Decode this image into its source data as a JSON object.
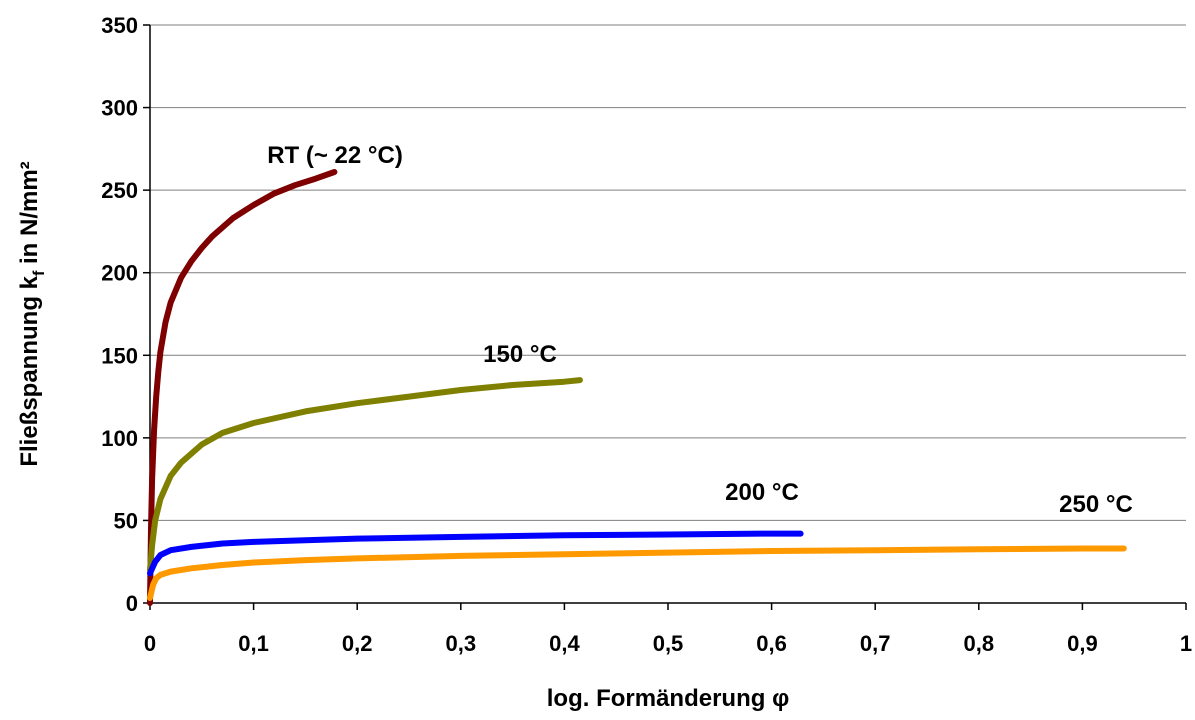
{
  "chart_data": {
    "type": "line",
    "title": "",
    "xlabel": "log. Formänderung φ",
    "ylabel_main": "Fließspannung k",
    "ylabel_sub": "f",
    "ylabel_tail": " in N/mm²",
    "xlim": [
      0,
      1
    ],
    "ylim": [
      0,
      350
    ],
    "x_ticks": [
      0,
      0.1,
      0.2,
      0.3,
      0.4,
      0.5,
      0.6,
      0.7,
      0.8,
      0.9,
      1
    ],
    "x_tick_labels": [
      "0",
      "0,1",
      "0,2",
      "0,3",
      "0,4",
      "0,5",
      "0,6",
      "0,7",
      "0,8",
      "0,9",
      "1"
    ],
    "y_ticks": [
      0,
      50,
      100,
      150,
      200,
      250,
      300,
      350
    ],
    "y_tick_labels": [
      "0",
      "50",
      "100",
      "150",
      "200",
      "250",
      "300",
      "350"
    ],
    "grid": "horizontal",
    "legend": "none",
    "series": [
      {
        "name": "RT (~ 22 °C)",
        "color": "#7f0000",
        "x": [
          0,
          0.001,
          0.002,
          0.004,
          0.006,
          0.008,
          0.01,
          0.015,
          0.02,
          0.03,
          0.04,
          0.05,
          0.06,
          0.08,
          0.1,
          0.12,
          0.14,
          0.16,
          0.178
        ],
        "y": [
          0,
          45,
          75,
          105,
          125,
          140,
          152,
          170,
          182,
          197,
          207,
          215,
          222,
          233,
          241,
          248,
          253,
          257,
          261
        ]
      },
      {
        "name": "150  °C",
        "color": "#808000",
        "x": [
          0,
          0.002,
          0.005,
          0.01,
          0.02,
          0.03,
          0.05,
          0.07,
          0.1,
          0.15,
          0.2,
          0.25,
          0.3,
          0.35,
          0.4,
          0.415
        ],
        "y": [
          20,
          35,
          50,
          63,
          77,
          85,
          96,
          103,
          109,
          116,
          121,
          125,
          129,
          132,
          134,
          135
        ]
      },
      {
        "name": "200 °C",
        "color": "#0000ff",
        "x": [
          0,
          0.005,
          0.01,
          0.02,
          0.04,
          0.07,
          0.1,
          0.15,
          0.2,
          0.3,
          0.4,
          0.5,
          0.6,
          0.628
        ],
        "y": [
          18,
          25,
          29,
          32,
          34,
          36,
          37,
          38,
          39,
          40,
          41,
          41.5,
          42,
          42
        ]
      },
      {
        "name": "250 °C",
        "color": "#ff9900",
        "x": [
          0,
          0.003,
          0.006,
          0.01,
          0.02,
          0.04,
          0.07,
          0.1,
          0.15,
          0.2,
          0.3,
          0.4,
          0.5,
          0.6,
          0.7,
          0.8,
          0.9,
          0.94
        ],
        "y": [
          3,
          11,
          15,
          17,
          19,
          21,
          23,
          24.5,
          26,
          27,
          28.5,
          29.5,
          30.5,
          31.5,
          32,
          32.5,
          33,
          33
        ]
      }
    ],
    "annotations": [
      {
        "text": "RT (~ 22 °C)",
        "series": 0
      },
      {
        "text": "150  °C",
        "series": 1
      },
      {
        "text": "200 °C",
        "series": 2
      },
      {
        "text": "250 °C",
        "series": 3
      }
    ]
  }
}
